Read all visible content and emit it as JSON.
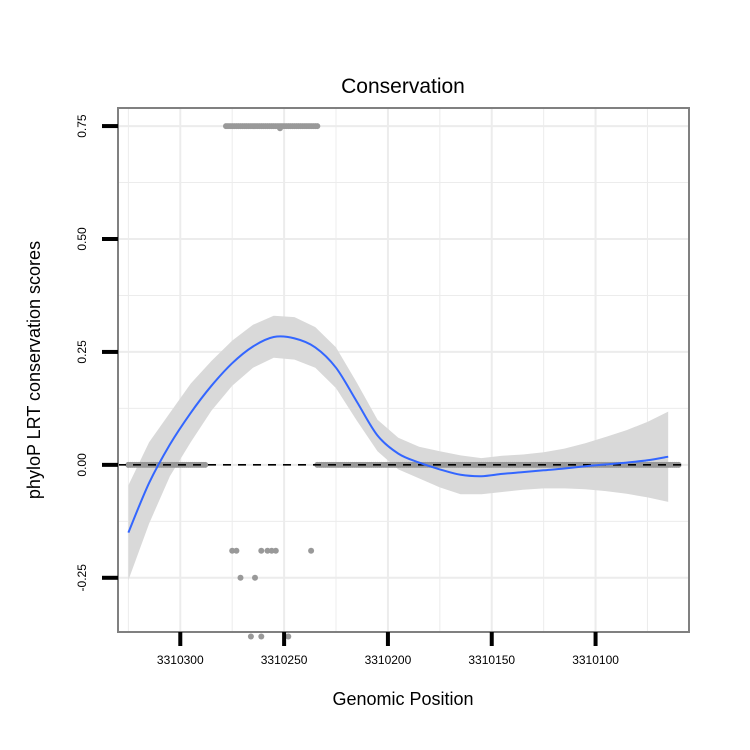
{
  "chart_data": {
    "type": "scatter",
    "title": "Conservation",
    "xlabel": "Genomic Position",
    "ylabel": "phyloP LRT conservation scores",
    "x_reversed": true,
    "xlim": [
      3310330,
      3310055
    ],
    "ylim": [
      -0.37,
      0.79
    ],
    "x_ticks": [
      3310300,
      3310250,
      3310200,
      3310150,
      3310100
    ],
    "x_tick_labels": [
      "3310300",
      "3310250",
      "3310200",
      "3310150",
      "3310100"
    ],
    "y_ticks": [
      -0.25,
      0.0,
      0.25,
      0.5,
      0.75
    ],
    "y_tick_labels": [
      "-0.25",
      "0.00",
      "0.25",
      "0.50",
      "0.75"
    ],
    "grid": true,
    "reference_line": {
      "y": 0.0,
      "style": "dashed"
    },
    "point_groups": [
      {
        "name": "zero-left",
        "x_from": 3310325,
        "x_to": 3310288,
        "step": 1,
        "y": 0.0
      },
      {
        "name": "zero-right",
        "x_from": 3310234,
        "x_to": 3310060,
        "step": 1,
        "y": 0.0
      },
      {
        "name": "high",
        "x_from": 3310278,
        "x_to": 3310234,
        "step": 1,
        "y": 0.75
      }
    ],
    "points": [
      {
        "x": 3310252,
        "y": 0.745
      },
      {
        "x": 3310275,
        "y": -0.19
      },
      {
        "x": 3310273,
        "y": -0.19
      },
      {
        "x": 3310261,
        "y": -0.19
      },
      {
        "x": 3310258,
        "y": -0.19
      },
      {
        "x": 3310256,
        "y": -0.19
      },
      {
        "x": 3310254,
        "y": -0.19
      },
      {
        "x": 3310237,
        "y": -0.19
      },
      {
        "x": 3310271,
        "y": -0.25
      },
      {
        "x": 3310264,
        "y": -0.25
      },
      {
        "x": 3310266,
        "y": -0.38
      },
      {
        "x": 3310261,
        "y": -0.38
      },
      {
        "x": 3310248,
        "y": -0.38
      }
    ],
    "smooth": {
      "color": "#3366ff",
      "x": [
        3310325,
        3310315,
        3310305,
        3310295,
        3310285,
        3310275,
        3310265,
        3310255,
        3310245,
        3310235,
        3310225,
        3310215,
        3310205,
        3310195,
        3310185,
        3310175,
        3310165,
        3310155,
        3310145,
        3310135,
        3310125,
        3310115,
        3310105,
        3310095,
        3310085,
        3310075,
        3310065
      ],
      "y": [
        -0.15,
        -0.04,
        0.045,
        0.115,
        0.175,
        0.225,
        0.262,
        0.283,
        0.28,
        0.26,
        0.215,
        0.14,
        0.065,
        0.025,
        0.005,
        -0.01,
        -0.022,
        -0.025,
        -0.02,
        -0.016,
        -0.012,
        -0.008,
        -0.003,
        0.001,
        0.005,
        0.01,
        0.018
      ],
      "ci_low": [
        -0.255,
        -0.13,
        -0.025,
        0.05,
        0.12,
        0.175,
        0.215,
        0.237,
        0.233,
        0.215,
        0.17,
        0.098,
        0.03,
        -0.01,
        -0.03,
        -0.05,
        -0.065,
        -0.065,
        -0.06,
        -0.055,
        -0.052,
        -0.052,
        -0.054,
        -0.058,
        -0.064,
        -0.072,
        -0.082
      ],
      "ci_high": [
        -0.045,
        0.05,
        0.115,
        0.18,
        0.23,
        0.275,
        0.31,
        0.33,
        0.327,
        0.305,
        0.26,
        0.182,
        0.1,
        0.06,
        0.04,
        0.03,
        0.021,
        0.015,
        0.02,
        0.023,
        0.028,
        0.036,
        0.048,
        0.062,
        0.077,
        0.095,
        0.118
      ]
    }
  },
  "colors": {
    "panel_border": "#808080",
    "grid": "#ececec",
    "points": "#999999",
    "ribbon": "#d9d9d9",
    "line": "#3366ff",
    "axis_ticks": "#000000"
  }
}
